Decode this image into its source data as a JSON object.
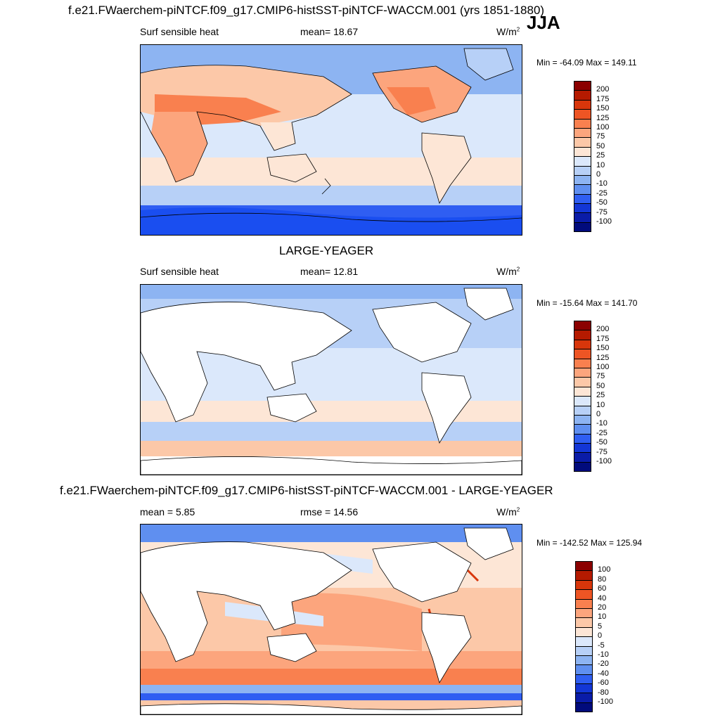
{
  "season": "JJA",
  "panels": [
    {
      "title": "f.e21.FWaerchem-piNTCF.f09_g17.CMIP6-histSST-piNTCF-WACCM.001 (yrs 1851-1880)",
      "left_label": "Surf sensible heat",
      "center_label": "mean=  18.67",
      "units": "W/m",
      "units_exp": "2",
      "minmax": "Min = -64.09 Max = 149.11",
      "land_filled": true
    },
    {
      "title": "LARGE-YEAGER",
      "left_label": "Surf sensible heat",
      "center_label": "mean=  12.81",
      "units": "W/m",
      "units_exp": "2",
      "minmax": "Min = -15.64 Max = 141.70",
      "land_filled": false
    },
    {
      "title": "f.e21.FWaerchem-piNTCF.f09_g17.CMIP6-histSST-piNTCF-WACCM.001 - LARGE-YEAGER",
      "left_label": "mean =   5.85",
      "center_label": "rmse =  14.56",
      "units": "W/m",
      "units_exp": "2",
      "minmax": "Min = -142.52 Max = 125.94",
      "land_filled": false
    }
  ],
  "legend_abs": {
    "labels": [
      "200",
      "175",
      "150",
      "125",
      "100",
      "75",
      "50",
      "25",
      "10",
      "0",
      "-10",
      "-25",
      "-50",
      "-75",
      "-100"
    ],
    "colors": [
      "#8b0000",
      "#b51a00",
      "#d8360b",
      "#ee5524",
      "#f9804f",
      "#fca57d",
      "#fcc8a8",
      "#fde6d6",
      "#dbe8fb",
      "#b7d0f7",
      "#8db4f2",
      "#5f8ff0",
      "#2f5ef2",
      "#1336d6",
      "#0a1ca8",
      "#010b7c"
    ]
  },
  "legend_diff": {
    "labels": [
      "100",
      "80",
      "60",
      "40",
      "20",
      "10",
      "5",
      "0",
      "-5",
      "-10",
      "-20",
      "-40",
      "-60",
      "-80",
      "-100"
    ],
    "colors": [
      "#8b0000",
      "#b51a00",
      "#d8360b",
      "#ee5524",
      "#f9804f",
      "#fca57d",
      "#fcc8a8",
      "#fde6d6",
      "#dbe8fb",
      "#b7d0f7",
      "#8db4f2",
      "#5f8ff0",
      "#2f5ef2",
      "#1336d6",
      "#0a1ca8",
      "#010b7c"
    ]
  }
}
